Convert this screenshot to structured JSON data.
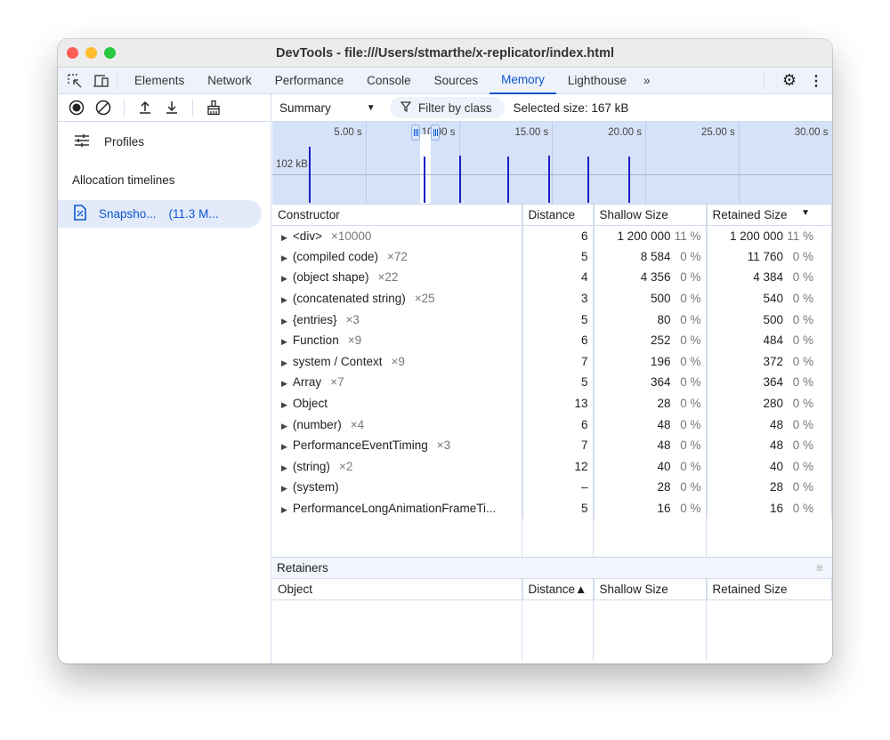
{
  "window": {
    "title": "DevTools - file:///Users/stmarthe/x-replicator/index.html"
  },
  "tabs": [
    {
      "label": "Elements"
    },
    {
      "label": "Network"
    },
    {
      "label": "Performance"
    },
    {
      "label": "Console"
    },
    {
      "label": "Sources"
    },
    {
      "label": "Memory",
      "active": true
    },
    {
      "label": "Lighthouse"
    }
  ],
  "colors": {
    "accent": "#0b57d0",
    "timeline_bg": "#d6e2f8",
    "bar": "#1a1fc9"
  },
  "sidebar": {
    "profiles_label": "Profiles",
    "section_title": "Allocation timelines",
    "snapshot": {
      "name": "Snapsho...",
      "size": "(11.3 M..."
    }
  },
  "toolbar": {
    "view": "Summary",
    "filter_label": "Filter by class",
    "selected_size": "Selected size: 167 kB"
  },
  "timeline": {
    "ticks": [
      "5.00 s",
      "10.00 s",
      "15.00 s",
      "20.00 s",
      "25.00 s",
      "30.00 s"
    ],
    "tick_values": [
      5,
      10,
      15,
      20,
      25,
      30
    ],
    "y_label": "102 kB",
    "y_label_value": 102,
    "selection": [
      7.9,
      8.5
    ],
    "bars": [
      {
        "t": 1.96,
        "kb": 200
      },
      {
        "t": 8.1,
        "kb": 166
      },
      {
        "t": 10.0,
        "kb": 170
      },
      {
        "t": 12.6,
        "kb": 166
      },
      {
        "t": 14.8,
        "kb": 170
      },
      {
        "t": 16.9,
        "kb": 166
      },
      {
        "t": 19.1,
        "kb": 166
      }
    ]
  },
  "summary": {
    "columns": [
      "Constructor",
      "Distance",
      "Shallow Size",
      "Retained Size"
    ],
    "rows": [
      {
        "name": "<div>",
        "count": "×10000",
        "distance": "6",
        "shallow": "1 200 000",
        "shallow_pct": "11 %",
        "retained": "1 200 000",
        "retained_pct": "11 %"
      },
      {
        "name": "(compiled code)",
        "count": "×72",
        "distance": "5",
        "shallow": "8 584",
        "shallow_pct": "0 %",
        "retained": "11 760",
        "retained_pct": "0 %"
      },
      {
        "name": "(object shape)",
        "count": "×22",
        "distance": "4",
        "shallow": "4 356",
        "shallow_pct": "0 %",
        "retained": "4 384",
        "retained_pct": "0 %"
      },
      {
        "name": "(concatenated string)",
        "count": "×25",
        "distance": "3",
        "shallow": "500",
        "shallow_pct": "0 %",
        "retained": "540",
        "retained_pct": "0 %"
      },
      {
        "name": "{entries}",
        "count": "×3",
        "distance": "5",
        "shallow": "80",
        "shallow_pct": "0 %",
        "retained": "500",
        "retained_pct": "0 %"
      },
      {
        "name": "Function",
        "count": "×9",
        "distance": "6",
        "shallow": "252",
        "shallow_pct": "0 %",
        "retained": "484",
        "retained_pct": "0 %"
      },
      {
        "name": "system / Context",
        "count": "×9",
        "distance": "7",
        "shallow": "196",
        "shallow_pct": "0 %",
        "retained": "372",
        "retained_pct": "0 %"
      },
      {
        "name": "Array",
        "count": "×7",
        "distance": "5",
        "shallow": "364",
        "shallow_pct": "0 %",
        "retained": "364",
        "retained_pct": "0 %"
      },
      {
        "name": "Object",
        "count": "",
        "distance": "13",
        "shallow": "28",
        "shallow_pct": "0 %",
        "retained": "280",
        "retained_pct": "0 %"
      },
      {
        "name": "(number)",
        "count": "×4",
        "distance": "6",
        "shallow": "48",
        "shallow_pct": "0 %",
        "retained": "48",
        "retained_pct": "0 %"
      },
      {
        "name": "PerformanceEventTiming",
        "count": "×3",
        "distance": "7",
        "shallow": "48",
        "shallow_pct": "0 %",
        "retained": "48",
        "retained_pct": "0 %"
      },
      {
        "name": "(string)",
        "count": "×2",
        "distance": "12",
        "shallow": "40",
        "shallow_pct": "0 %",
        "retained": "40",
        "retained_pct": "0 %"
      },
      {
        "name": "(system)",
        "count": "",
        "distance": "–",
        "shallow": "28",
        "shallow_pct": "0 %",
        "retained": "28",
        "retained_pct": "0 %"
      },
      {
        "name": "PerformanceLongAnimationFrameTi...",
        "count": "",
        "distance": "5",
        "shallow": "16",
        "shallow_pct": "0 %",
        "retained": "16",
        "retained_pct": "0 %"
      }
    ]
  },
  "retainers": {
    "title": "Retainers",
    "columns": [
      "Object",
      "Distance▲",
      "Shallow Size",
      "Retained Size"
    ]
  }
}
